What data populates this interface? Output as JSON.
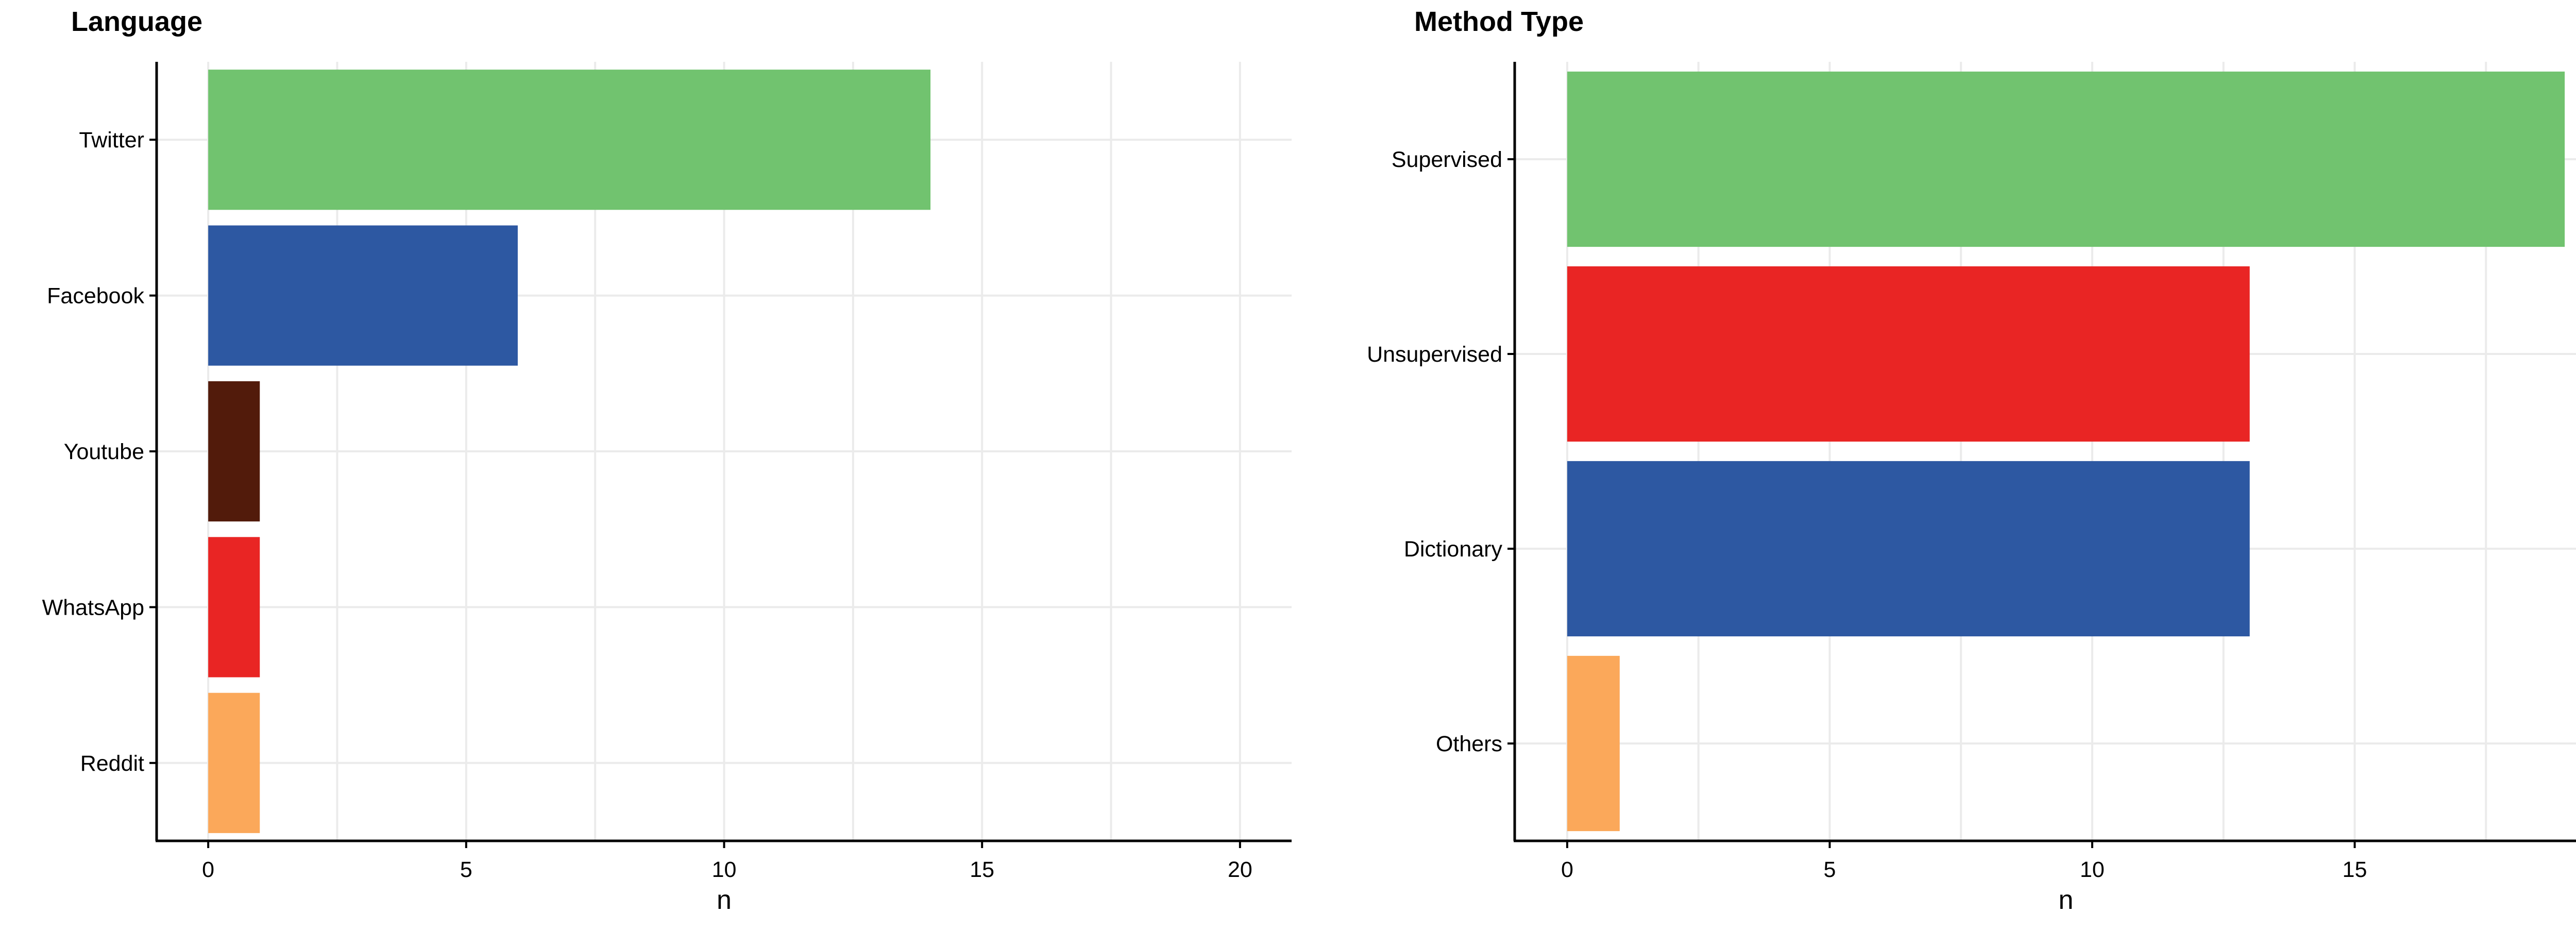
{
  "chart_data": [
    {
      "type": "bar",
      "orientation": "horizontal",
      "title": "Language",
      "xlabel": "n",
      "ylabel": "",
      "xlim": [
        -1,
        21
      ],
      "xticks": [
        0,
        5,
        10,
        15,
        20
      ],
      "grid": true,
      "categories": [
        "Twitter",
        "Facebook",
        "Youtube",
        "WhatsApp",
        "Reddit"
      ],
      "values": [
        14,
        6,
        1,
        1,
        1
      ],
      "colors": [
        "#71c36f",
        "#2d58a2",
        "#521b0b",
        "#e92524",
        "#fba85a"
      ]
    },
    {
      "type": "bar",
      "orientation": "horizontal",
      "title": "Method Type",
      "xlabel": "n",
      "ylabel": "",
      "xlim": [
        -1,
        20
      ],
      "xticks": [
        0,
        5,
        10,
        15
      ],
      "grid": true,
      "categories": [
        "Supervised",
        "Unsupervised",
        "Dictionary",
        "Others"
      ],
      "values": [
        19,
        13,
        13,
        1
      ],
      "colors": [
        "#71c36f",
        "#e92524",
        "#2d58a2",
        "#fba85a"
      ]
    }
  ]
}
